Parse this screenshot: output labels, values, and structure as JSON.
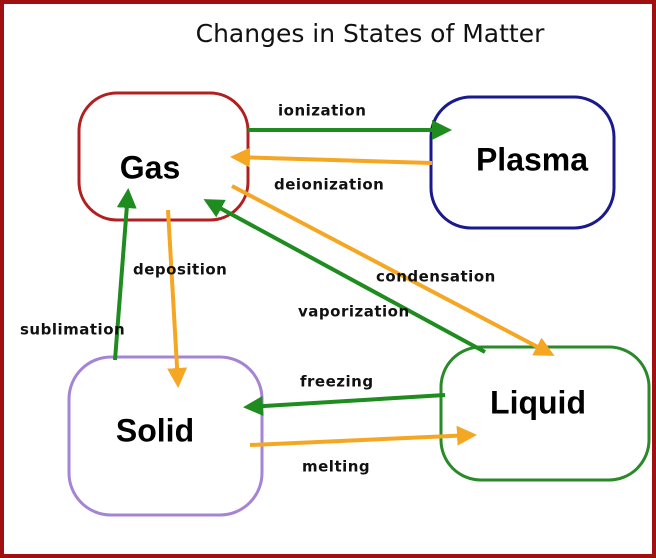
{
  "title": "Changes in States of Matter",
  "nodes": [
    {
      "label": "Gas"
    },
    {
      "label": "Plasma"
    },
    {
      "label": "Solid"
    },
    {
      "label": "Liquid"
    }
  ],
  "edges": [
    {
      "label": "ionization"
    },
    {
      "label": "deionization"
    },
    {
      "label": "condensation"
    },
    {
      "label": "vaporization"
    },
    {
      "label": "deposition"
    },
    {
      "label": "sublimation"
    },
    {
      "label": "freezing"
    },
    {
      "label": "melting"
    }
  ]
}
